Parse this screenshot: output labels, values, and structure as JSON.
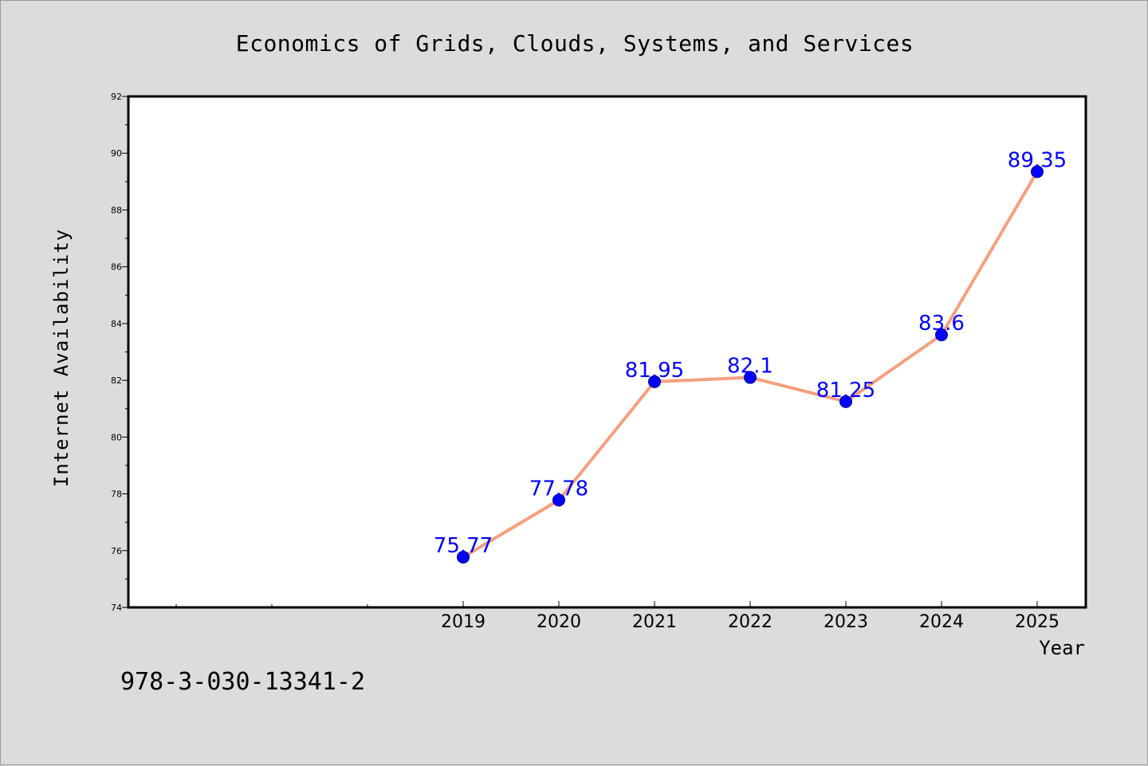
{
  "chart_data": {
    "type": "line",
    "title": "Economics of Grids, Clouds, Systems, and Services",
    "xlabel": "Year",
    "ylabel": "Internet Availability",
    "categories": [
      "2019",
      "2020",
      "2021",
      "2022",
      "2023",
      "2024",
      "2025"
    ],
    "series": [
      {
        "values": [
          75.77,
          77.78,
          81.95,
          82.1,
          81.25,
          83.6,
          89.35
        ],
        "data_labels": [
          "75.77",
          "77.78",
          "81.95",
          "82.1",
          "81.25",
          "83.6",
          "89.35"
        ]
      }
    ],
    "ylim": [
      74,
      92
    ],
    "yticks": [
      "74",
      "76",
      "78",
      "80",
      "82",
      "84",
      "86",
      "88",
      "90",
      "92"
    ],
    "grid": false,
    "line_color": "#f4a07f",
    "marker_color": "#0000ff",
    "label_color": "#0000ff"
  },
  "footer": {
    "code": "978-3-030-13341-2"
  }
}
